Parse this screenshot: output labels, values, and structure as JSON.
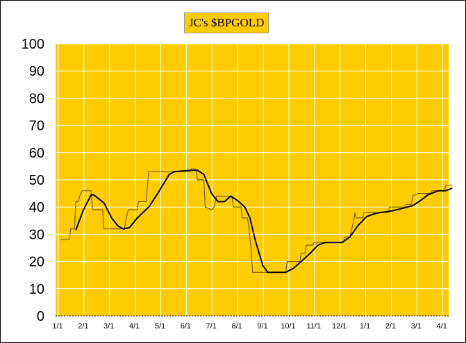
{
  "chart_data": {
    "type": "line",
    "title": "JC's $BPGOLD",
    "xlabel": "",
    "ylabel": "",
    "ylim": [
      0,
      100
    ],
    "yticks": [
      "0",
      "10",
      "20",
      "30",
      "40",
      "50",
      "60",
      "70",
      "80",
      "90",
      "100"
    ],
    "xticks": [
      "1/1",
      "2/1",
      "3/1",
      "4/1",
      "5/1",
      "6/1",
      "7/1",
      "8/1",
      "9/1",
      "10/1",
      "11/1",
      "12/1",
      "1/1",
      "2/1",
      "3/1",
      "4/1"
    ],
    "grid": true,
    "colors": {
      "plot_bg": "#FFCC00",
      "grid": "#FFFFFF",
      "raw_line": "#7A6000",
      "smooth_line": "#000000"
    },
    "series": [
      {
        "values": [
          [
            0.0,
            28
          ],
          [
            0.35,
            28
          ],
          [
            0.4,
            32
          ],
          [
            0.55,
            32
          ],
          [
            0.6,
            42
          ],
          [
            0.7,
            42
          ],
          [
            0.75,
            44
          ],
          [
            0.85,
            46
          ],
          [
            1.2,
            46
          ],
          [
            1.25,
            39
          ],
          [
            1.65,
            39
          ],
          [
            1.7,
            32
          ],
          [
            2.5,
            32
          ],
          [
            2.55,
            35
          ],
          [
            2.65,
            39
          ],
          [
            3.0,
            39
          ],
          [
            3.05,
            42
          ],
          [
            3.35,
            42
          ],
          [
            3.4,
            48
          ],
          [
            3.45,
            53
          ],
          [
            5.05,
            53
          ],
          [
            5.1,
            54
          ],
          [
            5.3,
            54
          ],
          [
            5.35,
            50
          ],
          [
            5.6,
            50
          ],
          [
            5.65,
            40
          ],
          [
            5.9,
            39
          ],
          [
            6.0,
            40
          ],
          [
            6.1,
            44
          ],
          [
            6.7,
            44
          ],
          [
            6.75,
            40
          ],
          [
            7.05,
            40
          ],
          [
            7.1,
            36
          ],
          [
            7.3,
            36
          ],
          [
            7.35,
            33
          ],
          [
            7.45,
            24
          ],
          [
            7.5,
            16
          ],
          [
            8.8,
            16
          ],
          [
            8.85,
            20
          ],
          [
            9.35,
            20
          ],
          [
            9.4,
            23
          ],
          [
            9.55,
            23
          ],
          [
            9.6,
            26
          ],
          [
            9.85,
            26
          ],
          [
            9.9,
            27
          ],
          [
            11.05,
            27
          ],
          [
            11.1,
            29
          ],
          [
            11.3,
            29
          ],
          [
            11.35,
            31
          ],
          [
            11.45,
            35
          ],
          [
            11.5,
            38
          ],
          [
            11.55,
            36
          ],
          [
            11.8,
            36
          ],
          [
            11.85,
            38
          ],
          [
            12.8,
            38
          ],
          [
            12.85,
            40
          ],
          [
            13.45,
            40
          ],
          [
            13.5,
            41
          ],
          [
            13.7,
            41
          ],
          [
            13.75,
            44
          ],
          [
            13.95,
            45
          ],
          [
            14.45,
            45
          ],
          [
            14.5,
            46
          ],
          [
            15.0,
            46
          ],
          [
            15.05,
            48
          ],
          [
            15.3,
            48
          ]
        ]
      },
      {
        "values": [
          [
            0.6,
            31.5
          ],
          [
            0.9,
            39
          ],
          [
            1.2,
            44.5
          ],
          [
            1.3,
            44.5
          ],
          [
            1.7,
            41.5
          ],
          [
            2.0,
            36
          ],
          [
            2.25,
            33
          ],
          [
            2.45,
            32
          ],
          [
            2.7,
            32.5
          ],
          [
            3.0,
            36
          ],
          [
            3.45,
            40
          ],
          [
            3.8,
            45
          ],
          [
            4.25,
            52
          ],
          [
            4.45,
            53
          ],
          [
            5.05,
            53.5
          ],
          [
            5.35,
            53.5
          ],
          [
            5.6,
            52
          ],
          [
            5.9,
            45
          ],
          [
            6.15,
            42
          ],
          [
            6.4,
            42
          ],
          [
            6.65,
            44
          ],
          [
            6.9,
            42.5
          ],
          [
            7.2,
            40
          ],
          [
            7.4,
            36
          ],
          [
            7.6,
            28
          ],
          [
            7.9,
            18.5
          ],
          [
            8.1,
            16
          ],
          [
            8.8,
            16
          ],
          [
            9.1,
            17.5
          ],
          [
            9.4,
            20
          ],
          [
            9.75,
            23
          ],
          [
            10.05,
            26
          ],
          [
            10.35,
            27
          ],
          [
            11.0,
            27
          ],
          [
            11.3,
            29
          ],
          [
            11.6,
            33
          ],
          [
            11.95,
            36.5
          ],
          [
            12.25,
            37.5
          ],
          [
            12.5,
            38
          ],
          [
            12.9,
            38.5
          ],
          [
            13.35,
            39.5
          ],
          [
            13.75,
            40.5
          ],
          [
            14.0,
            42
          ],
          [
            14.35,
            44.5
          ],
          [
            14.75,
            46
          ],
          [
            15.05,
            46
          ],
          [
            15.3,
            47
          ]
        ]
      }
    ]
  }
}
